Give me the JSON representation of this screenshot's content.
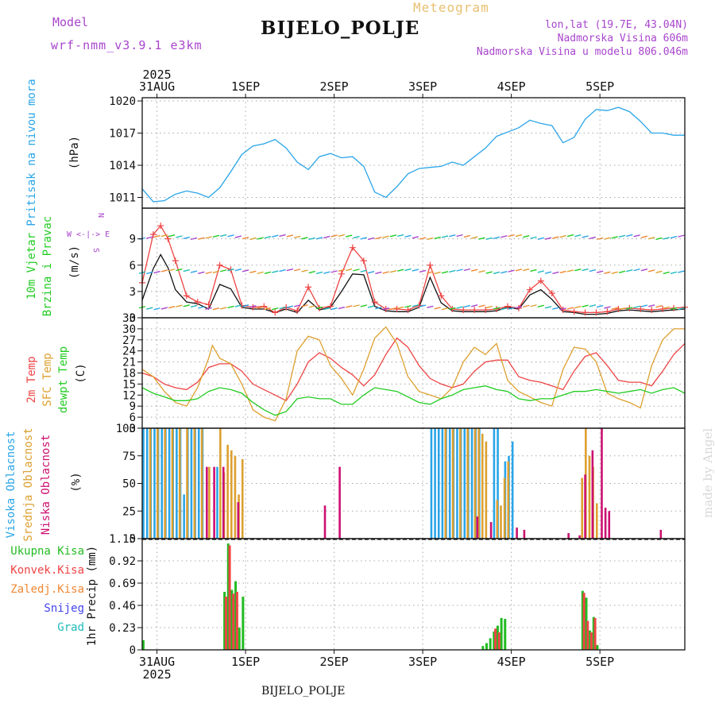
{
  "header": {
    "model_label": "Model",
    "model_name": "wrf-nmm_v3.9.1 e3km",
    "meteogram_label": "Meteogram",
    "station": "BIJELO_POLJE",
    "lonlat": "lon,lat (19.7E, 43.04N)",
    "altitude": "Nadmorska Visina 606m",
    "model_altitude": "Nadmorska Visina u modelu 806.046m"
  },
  "footer": {
    "station": "BIJELO_POLJE",
    "watermark": "made by Angel"
  },
  "time_axis": {
    "year": "2025",
    "days": [
      "31AUG",
      "1SEP",
      "2SEP",
      "3SEP",
      "4SEP",
      "5SEP"
    ],
    "start_hour": 0,
    "end_hour": 147
  },
  "colors": {
    "pressure": "#2aa5e8",
    "wind_black": "#111111",
    "wind_red": "#ee4444",
    "temp2m": "#ee4444",
    "sfc": "#dda030",
    "dew": "#22cc22",
    "high": "#2aa5e8",
    "mid": "#dda030",
    "low": "#cc1070",
    "total": "#22bb22",
    "conv": "#ee4444",
    "frozen": "#ee8833",
    "snow": "#4444ee",
    "hail": "#22bbbb",
    "wind_title1": "#22cc22",
    "wind_title2": "#22cc22",
    "wind_side": "#a845cc"
  },
  "chart_data": [
    {
      "type": "line",
      "id": "pressure",
      "title": "Pritisak na nivou mora",
      "ylabel": "(hPa)",
      "ylim": [
        1010,
        1020.3
      ],
      "yticks": [
        "1011",
        "1014",
        "1017",
        "1020"
      ],
      "series": [
        {
          "name": "Pritisak na nivou mora",
          "color": "#2aa5e8",
          "x": [
            0,
            3,
            6,
            9,
            12,
            15,
            18,
            21,
            24,
            27,
            30,
            33,
            36,
            39,
            42,
            45,
            48,
            51,
            54,
            57,
            60,
            63,
            66,
            69,
            72,
            75,
            78,
            81,
            84,
            87,
            90,
            93,
            96,
            99,
            102,
            105,
            108,
            111,
            114,
            117,
            120,
            123,
            126,
            129,
            132,
            135,
            138,
            141,
            144,
            147
          ],
          "y": [
            1011.8,
            1010.6,
            1010.7,
            1011.3,
            1011.6,
            1011.4,
            1011.0,
            1011.9,
            1013.4,
            1015.0,
            1015.8,
            1016.0,
            1016.4,
            1015.6,
            1014.3,
            1013.6,
            1014.8,
            1015.1,
            1014.7,
            1014.8,
            1013.9,
            1011.5,
            1011.0,
            1012.0,
            1013.2,
            1013.7,
            1013.8,
            1013.9,
            1014.3,
            1014.0,
            1014.8,
            1015.6,
            1016.7,
            1017.1,
            1017.5,
            1018.2,
            1017.9,
            1017.7,
            1016.1,
            1016.6,
            1018.3,
            1019.2,
            1019.1,
            1019.4,
            1019.0,
            1018.1,
            1017.0,
            1017.0,
            1016.8,
            1016.8
          ]
        }
      ]
    },
    {
      "type": "line",
      "id": "wind",
      "title": "10m Vjetar",
      "title2": "Brzina i Pravac",
      "ylabel": "(m/s)",
      "ylim": [
        0,
        12.5
      ],
      "yticks": [
        "0",
        "3",
        "6",
        "9"
      ],
      "compass": [
        "N",
        "W <-|-> E",
        "S"
      ],
      "series": [
        {
          "name": "Brzina",
          "color": "#111111",
          "x": [
            0,
            3,
            5,
            7,
            9,
            12,
            15,
            18,
            21,
            24,
            27,
            30,
            33,
            36,
            39,
            42,
            45,
            48,
            51,
            54,
            57,
            60,
            63,
            66,
            69,
            72,
            75,
            78,
            81,
            84,
            87,
            90,
            93,
            96,
            99,
            102,
            105,
            108,
            111,
            114,
            117,
            120,
            123,
            126,
            129,
            132,
            135,
            138,
            141,
            144,
            147
          ],
          "y": [
            2.0,
            5.6,
            7.2,
            5.7,
            3.2,
            1.8,
            1.6,
            1.0,
            3.8,
            3.3,
            1.2,
            1.0,
            1.0,
            0.6,
            1.0,
            0.6,
            2.0,
            0.9,
            1.2,
            3.0,
            5.0,
            4.9,
            1.3,
            0.8,
            0.7,
            0.7,
            1.2,
            4.6,
            1.7,
            0.8,
            0.7,
            0.7,
            0.7,
            0.8,
            1.2,
            1.0,
            2.6,
            3.2,
            2.1,
            0.7,
            0.6,
            0.4,
            0.4,
            0.5,
            0.8,
            0.9,
            0.8,
            0.7,
            0.8,
            0.9,
            1.0
          ]
        },
        {
          "name": "Udari",
          "color": "#ee4444",
          "x": [
            0,
            3,
            5,
            7,
            9,
            12,
            15,
            18,
            21,
            24,
            27,
            30,
            33,
            36,
            39,
            42,
            45,
            48,
            51,
            54,
            57,
            60,
            63,
            66,
            69,
            72,
            75,
            78,
            81,
            84,
            87,
            90,
            93,
            96,
            99,
            102,
            105,
            108,
            111,
            114,
            117,
            120,
            123,
            126,
            129,
            132,
            135,
            138,
            141,
            144,
            147
          ],
          "y": [
            4.0,
            9.5,
            10.5,
            9.0,
            6.5,
            2.5,
            1.8,
            1.5,
            6.0,
            5.5,
            1.4,
            1.2,
            1.3,
            0.6,
            1.2,
            0.8,
            3.5,
            1.1,
            1.3,
            5.0,
            8.0,
            6.5,
            1.8,
            1.0,
            1.0,
            0.9,
            1.4,
            6.0,
            2.5,
            1.0,
            0.9,
            0.9,
            0.9,
            1.0,
            1.3,
            1.1,
            3.2,
            4.2,
            2.8,
            0.9,
            0.7,
            0.6,
            0.6,
            0.7,
            1.0,
            1.1,
            1.0,
            0.9,
            1.0,
            1.1,
            1.2
          ]
        }
      ]
    },
    {
      "type": "line",
      "id": "temperature",
      "titles": [
        "2m Temp",
        "SFC Temp",
        "dewpt Temp"
      ],
      "ylabel": "(C)",
      "ylim": [
        3,
        33
      ],
      "yticks": [
        "3",
        "6",
        "9",
        "12",
        "15",
        "18",
        "21",
        "24",
        "27",
        "30",
        "33"
      ],
      "series": [
        {
          "name": "2m Temp",
          "color": "#ee4444",
          "x": [
            0,
            3,
            6,
            9,
            12,
            15,
            18,
            21,
            24,
            27,
            30,
            33,
            36,
            39,
            42,
            45,
            48,
            51,
            54,
            57,
            60,
            63,
            66,
            69,
            72,
            75,
            78,
            81,
            84,
            87,
            90,
            93,
            96,
            99,
            102,
            105,
            108,
            111,
            114,
            117,
            120,
            123,
            126,
            129,
            132,
            135,
            138,
            141,
            144,
            147
          ],
          "y": [
            18.0,
            17.0,
            15.0,
            14.0,
            13.5,
            15.5,
            19.5,
            20.5,
            20.5,
            18.5,
            15.0,
            13.5,
            12.0,
            10.5,
            15.0,
            21.0,
            23.5,
            22.0,
            19.5,
            17.5,
            14.5,
            17.5,
            23.0,
            27.5,
            25.0,
            20.0,
            16.5,
            15.0,
            14.0,
            15.0,
            18.5,
            21.0,
            21.5,
            21.5,
            17.0,
            16.0,
            15.5,
            14.5,
            13.5,
            18.5,
            22.5,
            23.5,
            20.0,
            16.0,
            15.5,
            15.5,
            14.5,
            18.5,
            23.0,
            26.0
          ]
        },
        {
          "name": "SFC Temp",
          "color": "#dda030",
          "x": [
            0,
            3,
            6,
            9,
            12,
            15,
            18,
            19,
            21,
            24,
            27,
            30,
            33,
            36,
            39,
            42,
            45,
            48,
            51,
            54,
            57,
            60,
            63,
            66,
            69,
            72,
            75,
            78,
            81,
            84,
            87,
            90,
            93,
            96,
            99,
            102,
            105,
            108,
            111,
            114,
            117,
            120,
            123,
            126,
            129,
            132,
            135,
            138,
            141,
            144,
            147
          ],
          "y": [
            19.0,
            17.0,
            13.0,
            10.0,
            9.0,
            14.0,
            22.0,
            25.5,
            22.0,
            20.5,
            15.0,
            8.0,
            6.0,
            5.0,
            11.0,
            24.0,
            28.0,
            27.0,
            20.0,
            16.5,
            12.0,
            19.0,
            27.5,
            30.5,
            26.0,
            17.0,
            13.0,
            12.0,
            11.0,
            14.0,
            21.0,
            25.0,
            23.0,
            26.0,
            16.0,
            13.0,
            11.5,
            10.0,
            9.0,
            19.0,
            25.0,
            24.5,
            21.0,
            12.5,
            11.0,
            10.0,
            8.5,
            20.0,
            27.0,
            30.0,
            30.0
          ]
        },
        {
          "name": "dewpt Temp",
          "color": "#22cc22",
          "x": [
            0,
            3,
            6,
            9,
            12,
            15,
            18,
            21,
            24,
            27,
            30,
            33,
            36,
            39,
            42,
            45,
            48,
            51,
            54,
            57,
            60,
            63,
            66,
            69,
            72,
            75,
            78,
            81,
            84,
            87,
            90,
            93,
            96,
            99,
            102,
            105,
            108,
            111,
            114,
            117,
            120,
            123,
            126,
            129,
            132,
            135,
            138,
            141,
            144,
            147
          ],
          "y": [
            14.0,
            12.5,
            11.5,
            10.5,
            10.5,
            11.0,
            13.0,
            14.0,
            13.5,
            12.5,
            10.0,
            8.0,
            6.5,
            7.5,
            11.0,
            11.5,
            11.0,
            11.0,
            9.5,
            9.5,
            12.0,
            14.0,
            13.5,
            13.0,
            11.5,
            10.0,
            9.5,
            11.0,
            12.0,
            13.5,
            14.0,
            14.5,
            13.5,
            13.0,
            11.0,
            10.5,
            11.0,
            11.0,
            12.0,
            13.0,
            13.0,
            13.5,
            13.0,
            12.5,
            13.0,
            13.5,
            12.5,
            13.5,
            14.0,
            12.5
          ]
        }
      ]
    },
    {
      "type": "bar",
      "id": "clouds",
      "titles": [
        "Visoka Oblacnost",
        "Srednja Oblacnost",
        "Niska Oblacnost"
      ],
      "ylabel": "(%)",
      "ylim": [
        0,
        100
      ],
      "yticks": [
        "0",
        "25",
        "50",
        "75",
        "100"
      ],
      "series": [
        {
          "name": "Visoka Oblacnost",
          "color": "#2aa5e8",
          "x": [
            0.5,
            1.5,
            2.5,
            3.5,
            4.5,
            5.5,
            6.5,
            7.5,
            8.5,
            9.5,
            10.5,
            11.5,
            12.5,
            13.5,
            14.5,
            15.5,
            16.5,
            20.5,
            78.5,
            79.5,
            80.5,
            81.5,
            82.5,
            83.5,
            84.5,
            85.5,
            86.5,
            87.5,
            88.5,
            89.5,
            90.5,
            91.5,
            95.5,
            96.5,
            98.5,
            99.5,
            100.5
          ],
          "y": [
            100,
            100,
            100,
            100,
            100,
            100,
            100,
            100,
            100,
            100,
            100,
            40,
            100,
            100,
            100,
            100,
            100,
            65,
            100,
            100,
            100,
            100,
            100,
            100,
            100,
            100,
            100,
            100,
            100,
            100,
            100,
            100,
            100,
            100,
            70,
            75,
            88
          ]
        },
        {
          "name": "Srednja Oblacnost",
          "color": "#dda030",
          "x": [
            2,
            4,
            6,
            8,
            10,
            12,
            14,
            16,
            18,
            21,
            22,
            23,
            24,
            25,
            26,
            27,
            82,
            84,
            86,
            88,
            90,
            91,
            92,
            93,
            96,
            97,
            98,
            99,
            119,
            120,
            121,
            122,
            123
          ],
          "y": [
            100,
            100,
            100,
            100,
            100,
            100,
            100,
            100,
            65,
            100,
            60,
            85,
            80,
            75,
            40,
            72,
            100,
            100,
            100,
            100,
            100,
            100,
            95,
            88,
            35,
            30,
            55,
            70,
            55,
            100,
            75,
            65,
            32
          ]
        },
        {
          "name": "Niska Oblacnost",
          "color": "#cc1070",
          "x": [
            17,
            19,
            21.5,
            25.5,
            49,
            53,
            90.3,
            94,
            101,
            103,
            115,
            118,
            119.5,
            121.5,
            124,
            125,
            126,
            140
          ],
          "y": [
            65,
            65,
            65,
            33,
            30,
            65,
            20,
            15,
            10,
            8,
            5,
            3,
            58,
            80,
            100,
            28,
            25,
            8
          ]
        }
      ]
    },
    {
      "type": "bar",
      "id": "precip",
      "titles": [
        "Ukupna Kisa",
        "Konvek.Kisa",
        "Zaledj.Kisa",
        "Snijeg",
        "Grad"
      ],
      "ylabel": "1hr Precip (mm)",
      "ylim": [
        0,
        1.15
      ],
      "yticks": [
        "0",
        "0.23",
        "0.46",
        "0.69",
        "0.92",
        "1.15"
      ],
      "series": [
        {
          "name": "Ukupna Kisa",
          "color": "#22bb22",
          "x": [
            0.5,
            22.5,
            23.5,
            24.5,
            25.5,
            26.5,
            27.5,
            92.5,
            93.5,
            94.5,
            95.5,
            96.5,
            97.5,
            98.5,
            119.5,
            120.5,
            121.5,
            122.5,
            123.5
          ],
          "y": [
            0.1,
            0.6,
            1.1,
            0.62,
            0.71,
            0.23,
            0.55,
            0.04,
            0.07,
            0.12,
            0.19,
            0.25,
            0.33,
            0.32,
            0.61,
            0.54,
            0.2,
            0.34,
            0.05
          ]
        },
        {
          "name": "Konvek.Kisa",
          "color": "#ee4444",
          "x": [
            22.5,
            23.5,
            24.5,
            25.5,
            95.5,
            96.5,
            119.5,
            120.5,
            121.5,
            122.5
          ],
          "y": [
            0.55,
            1.08,
            0.58,
            0.6,
            0.22,
            0.18,
            0.59,
            0.3,
            0.18,
            0.33
          ]
        },
        {
          "name": "Zaledj.Kisa",
          "color": "#ee8833",
          "x": [],
          "y": []
        },
        {
          "name": "Snijeg",
          "color": "#4444ee",
          "x": [],
          "y": []
        },
        {
          "name": "Grad",
          "color": "#22bbbb",
          "x": [],
          "y": []
        }
      ]
    }
  ]
}
